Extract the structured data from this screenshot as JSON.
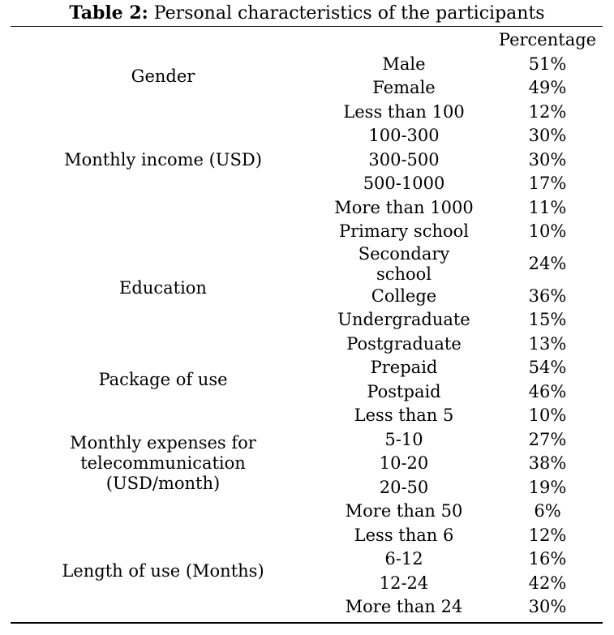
{
  "caption": {
    "label": "Table 2:",
    "text": " Personal characteristics of the participants"
  },
  "header": {
    "col3": "Percentage"
  },
  "groups": [
    {
      "name": "Gender",
      "rows": [
        {
          "sub": "Male",
          "pct": "51%"
        },
        {
          "sub": "Female",
          "pct": "49%"
        }
      ]
    },
    {
      "name": "Monthly income (USD)",
      "rows": [
        {
          "sub": "Less than 100",
          "pct": "12%"
        },
        {
          "sub": "100-300",
          "pct": "30%"
        },
        {
          "sub": "300-500",
          "pct": "30%"
        },
        {
          "sub": "500-1000",
          "pct": "17%"
        },
        {
          "sub": "More than 1000",
          "pct": "11%"
        }
      ]
    },
    {
      "name": "Education",
      "rows": [
        {
          "sub": "Primary school",
          "pct": "10%"
        },
        {
          "sub": "Secondary school",
          "pct": "24%"
        },
        {
          "sub": "College",
          "pct": "36%"
        },
        {
          "sub": "Undergraduate",
          "pct": "15%"
        },
        {
          "sub": "Postgraduate",
          "pct": "13%"
        }
      ]
    },
    {
      "name": "Package of use",
      "rows": [
        {
          "sub": "Prepaid",
          "pct": "54%"
        },
        {
          "sub": "Postpaid",
          "pct": "46%"
        }
      ]
    },
    {
      "name": "Monthly expenses for telecommunication (USD/month)",
      "rows": [
        {
          "sub": "Less than 5",
          "pct": "10%"
        },
        {
          "sub": "5-10",
          "pct": "27%"
        },
        {
          "sub": "10-20",
          "pct": "38%"
        },
        {
          "sub": "20-50",
          "pct": "19%"
        },
        {
          "sub": "More than 50",
          "pct": "6%"
        }
      ]
    },
    {
      "name": "Length of use (Months)",
      "rows": [
        {
          "sub": "Less than 6",
          "pct": "12%"
        },
        {
          "sub": "6-12",
          "pct": "16%"
        },
        {
          "sub": "12-24",
          "pct": "42%"
        },
        {
          "sub": "More than 24",
          "pct": "30%"
        }
      ]
    }
  ]
}
